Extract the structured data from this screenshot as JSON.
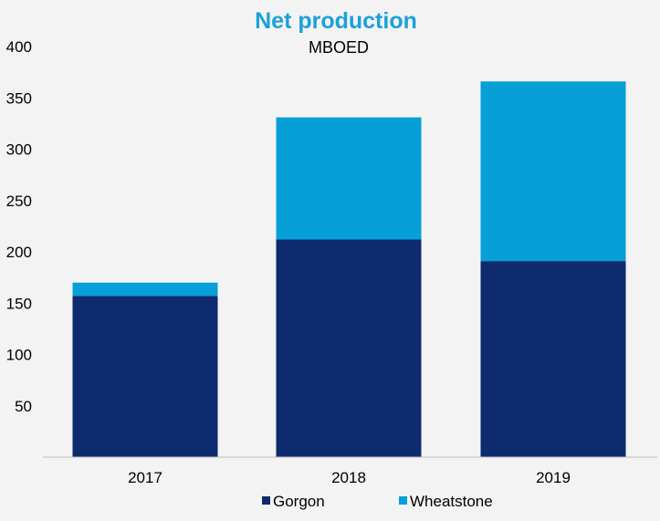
{
  "colors": {
    "background": "#f3f3f3",
    "title": "#1ba1d9",
    "gorgon": "#0d2b6e",
    "wheatstone": "#069fd8",
    "axis": "#bfbfbf"
  },
  "chart_data": {
    "type": "bar",
    "stacked": true,
    "title": "Net production",
    "subtitle": "MBOED",
    "categories": [
      "2017",
      "2018",
      "2019"
    ],
    "series": [
      {
        "name": "Gorgon",
        "values": [
          157,
          212,
          191
        ]
      },
      {
        "name": "Wheatstone",
        "values": [
          13,
          119,
          175
        ]
      }
    ],
    "ylim": [
      0,
      400
    ],
    "yticks": [
      50,
      100,
      150,
      200,
      250,
      300,
      350,
      400
    ],
    "ytick_labels": [
      "50",
      "100",
      "150",
      "200",
      "250",
      "300",
      "350",
      "400"
    ],
    "grid": false,
    "legend_position": "bottom"
  }
}
